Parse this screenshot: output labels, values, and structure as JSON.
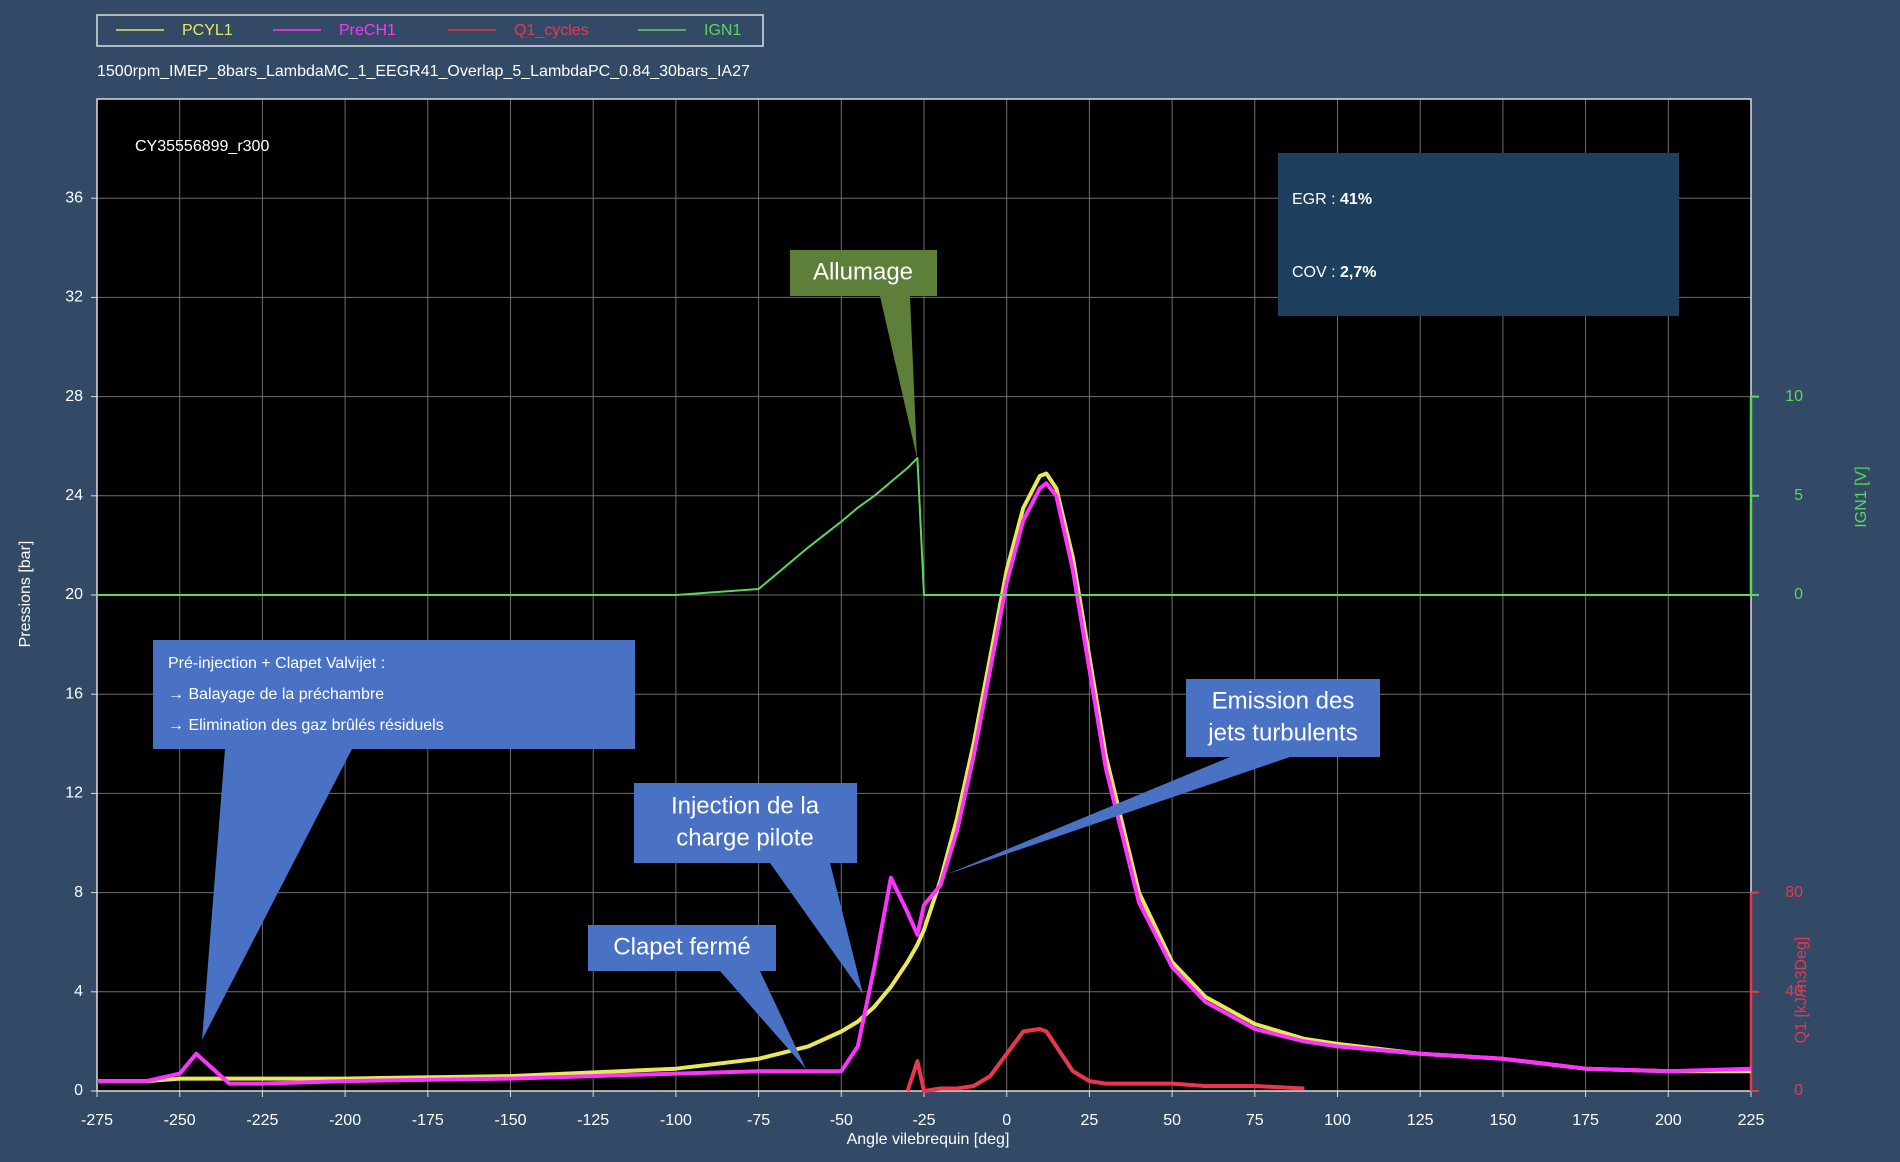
{
  "chart_data": {
    "type": "line",
    "legend": "top",
    "subtitle": "1500rpm_IMEP_8bars_LambdaMC_1_EEGR41_Overlap_5_LambdaPC_0.84_30bars_IA27",
    "cycle_label": "CY35556899_r300",
    "xlabel": "Angle vilebrequin [deg]",
    "ylabel": "Pressions [bar]",
    "y2label": "IGN1 [V]",
    "y3label": "Q1 [kJ/m3Deg]",
    "grid": true,
    "x": [
      -275,
      -260,
      -250,
      -245,
      -240,
      -235,
      -225,
      -200,
      -150,
      -100,
      -75,
      -60,
      -50,
      -45,
      -40,
      -35,
      -30,
      -27,
      -25,
      -20,
      -15,
      -10,
      -5,
      0,
      5,
      10,
      12,
      15,
      20,
      25,
      30,
      40,
      50,
      60,
      75,
      90,
      100,
      125,
      150,
      175,
      200,
      225
    ],
    "xlim": [
      -275,
      225
    ],
    "xticks": [
      -275,
      -250,
      -225,
      -200,
      -175,
      -150,
      -125,
      -100,
      -75,
      -50,
      -25,
      0,
      25,
      50,
      75,
      100,
      125,
      150,
      175,
      200,
      225
    ],
    "ylim": [
      0,
      40
    ],
    "yticks": [
      0,
      4,
      8,
      12,
      16,
      20,
      24,
      28,
      32,
      36
    ],
    "y2lim": [
      -25,
      25
    ],
    "y2ticks": [
      0,
      5,
      10
    ],
    "y3lim": [
      0,
      400
    ],
    "y3ticks": [
      0,
      40,
      80
    ],
    "series": [
      {
        "name": "PCYL1",
        "color": "#e8e85a",
        "values": [
          0.4,
          0.4,
          0.5,
          0.5,
          0.5,
          0.5,
          0.5,
          0.5,
          0.6,
          0.9,
          1.3,
          1.8,
          2.4,
          2.8,
          3.4,
          4.2,
          5.2,
          5.9,
          6.5,
          8.5,
          11,
          14,
          17.5,
          21,
          23.5,
          24.8,
          24.9,
          24.3,
          21.5,
          17.5,
          13.5,
          8,
          5.2,
          3.8,
          2.7,
          2.1,
          1.9,
          1.5,
          1.3,
          0.9,
          0.8,
          0.8
        ]
      },
      {
        "name": "PreCH1",
        "color": "#ff33ff",
        "values": [
          0.4,
          0.4,
          0.7,
          1.5,
          0.9,
          0.3,
          0.3,
          0.4,
          0.5,
          0.7,
          0.8,
          0.8,
          0.8,
          1.8,
          5,
          8.6,
          7.2,
          6.3,
          7.5,
          8.3,
          10.5,
          13.5,
          17,
          20.5,
          23,
          24.3,
          24.5,
          24,
          21,
          17,
          13,
          7.6,
          5,
          3.6,
          2.5,
          2,
          1.8,
          1.5,
          1.3,
          0.9,
          0.8,
          0.9
        ]
      },
      {
        "name": "Q1_cycles",
        "color": "#e8374f",
        "axis": "y3",
        "values": [
          null,
          null,
          null,
          null,
          null,
          null,
          null,
          null,
          null,
          null,
          null,
          null,
          null,
          null,
          null,
          null,
          0,
          12,
          0,
          1,
          1,
          2,
          6,
          15,
          24,
          25,
          24,
          18,
          8,
          4,
          3,
          3,
          3,
          2,
          2,
          1,
          null,
          null,
          null,
          null,
          null,
          null
        ]
      },
      {
        "name": "IGN1",
        "color": "#5cd65c",
        "axis": "y2",
        "values": [
          0,
          0,
          0,
          0,
          0,
          0,
          0,
          0,
          0,
          0,
          0.3,
          2.4,
          3.7,
          4.4,
          5,
          5.7,
          6.4,
          6.9,
          0,
          0,
          0,
          0,
          0,
          0,
          0,
          0,
          0,
          0,
          0,
          0,
          0,
          0,
          0,
          0,
          0,
          0,
          0,
          0,
          0,
          0,
          0,
          0
        ]
      }
    ]
  },
  "annotations": {
    "egr_label": "EGR :",
    "egr_value": "41%",
    "cov_label": "COV :",
    "cov_value": "2,7%",
    "allumage": "Allumage",
    "preinjection": [
      "Pré-injection + Clapet Valvijet :",
      "→ Balayage de la préchambre",
      "→ Elimination des gaz brûlés résiduels"
    ],
    "injection": [
      "Injection de la",
      "charge pilote"
    ],
    "clapet": "Clapet fermé",
    "emission": [
      "Emission des",
      "jets turbulents"
    ]
  }
}
